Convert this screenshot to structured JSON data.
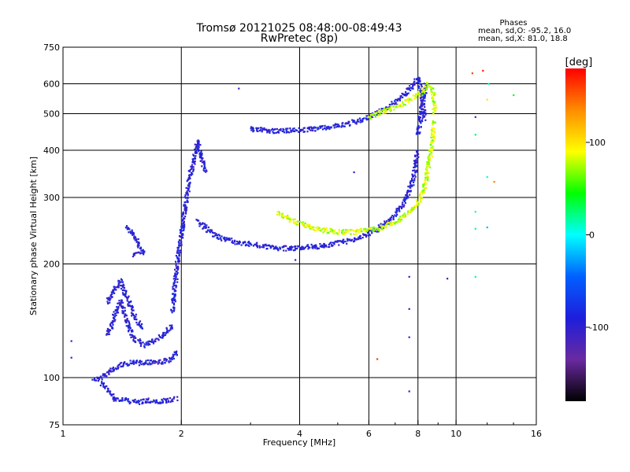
{
  "chart_data": {
    "type": "scatter",
    "title": "Tromsø 20121025 08:48:00-08:49:43",
    "subtitle": "RwPretec (8p)",
    "xlabel": "Frequency [MHz]",
    "ylabel": "Stationary phase Virtual Height [km]",
    "xscale": "log",
    "yscale": "log",
    "xlim": [
      1,
      16
    ],
    "ylim": [
      75,
      750
    ],
    "xticks": [
      1,
      2,
      4,
      6,
      8,
      10,
      16
    ],
    "xtick_labels": [
      "1",
      "2",
      "4",
      "6",
      "8",
      "10",
      "16"
    ],
    "yticks": [
      75,
      100,
      200,
      300,
      400,
      500,
      600,
      750
    ],
    "ytick_labels": [
      "75",
      "100",
      "200",
      "300",
      "400",
      "500",
      "600",
      "750"
    ],
    "vgrid": [
      2,
      4,
      6,
      8,
      10
    ],
    "hgrid": [
      100,
      200,
      300,
      400,
      500,
      600
    ],
    "phase_box": {
      "title": "Phases",
      "line1": "mean, sd,O: -95.2, 16.0",
      "line2": "mean, sd,X: 81.0, 18.8"
    },
    "colorbar": {
      "label": "[deg]",
      "range": [
        -180,
        180
      ],
      "ticks": [
        100,
        0,
        -100
      ],
      "tick_labels": [
        "100",
        "0",
        "-100"
      ],
      "colors": [
        "#ff0000",
        "#ff8c00",
        "#ffff00",
        "#00ff00",
        "#00ffff",
        "#0060ff",
        "#1e1edc",
        "#6a2aa0",
        "#000000"
      ]
    },
    "series": [
      {
        "phase": -95,
        "color": "#1e3cff",
        "traces": [
          {
            "kind": "sporadic-low",
            "x": [
              1.25,
              1.35,
              1.45,
              1.55,
              1.65,
              1.75,
              1.85,
              1.95
            ],
            "y": [
              97,
              88,
              87,
              86,
              87,
              86,
              87,
              88
            ]
          },
          {
            "kind": "lower-ramp",
            "x": [
              1.2,
              1.3,
              1.4,
              1.5,
              1.6,
              1.7,
              1.8,
              1.9,
              1.95
            ],
            "y": [
              98,
              103,
              108,
              110,
              109,
              110,
              110,
              112,
              118
            ]
          },
          {
            "kind": "lower-ramp-2",
            "x": [
              1.3,
              1.35,
              1.4,
              1.5,
              1.6,
              1.7,
              1.8,
              1.9
            ],
            "y": [
              130,
              145,
              160,
              128,
              122,
              125,
              130,
              138
            ]
          },
          {
            "kind": "E-trace",
            "x": [
              1.3,
              1.35,
              1.4,
              1.5,
              1.55,
              1.6
            ],
            "y": [
              158,
              170,
              180,
              150,
              140,
              135
            ]
          },
          {
            "kind": "blob-1.5",
            "x": [
              1.45,
              1.5,
              1.55,
              1.6,
              1.5
            ],
            "y": [
              250,
              240,
              228,
              215,
              210
            ]
          },
          {
            "kind": "F1-cusp",
            "x": [
              1.9,
              1.95,
              2.0,
              2.05,
              2.1,
              2.15,
              2.2,
              2.3
            ],
            "y": [
              150,
              200,
              240,
              290,
              340,
              380,
              420,
              350
            ]
          },
          {
            "kind": "F1-tail",
            "x": [
              2.2,
              2.3,
              2.4,
              2.6,
              2.8,
              3.0,
              3.2,
              3.4,
              3.7,
              4.0,
              4.5,
              5.0,
              5.5,
              6.0,
              6.5,
              7.0,
              7.5,
              7.8,
              8.0
            ],
            "y": [
              260,
              250,
              240,
              232,
              228,
              226,
              223,
              221,
              220,
              221,
              223,
              227,
              232,
              240,
              252,
              270,
              300,
              340,
              400
            ]
          },
          {
            "kind": "F2-O",
            "x": [
              3.0,
              3.5,
              4.0,
              4.5,
              5.0,
              5.5,
              6.0,
              6.5,
              7.0,
              7.5,
              7.8,
              8.0,
              8.2,
              8.3
            ],
            "y": [
              455,
              450,
              452,
              457,
              465,
              475,
              490,
              510,
              535,
              570,
              600,
              620,
              560,
              480
            ]
          },
          {
            "kind": "F-upper-vertical",
            "x": [
              8.0,
              8.1,
              8.2,
              8.3,
              8.35
            ],
            "y": [
              440,
              480,
              530,
              560,
              600
            ]
          }
        ]
      },
      {
        "phase": 81,
        "color": "#dcff00",
        "traces": [
          {
            "kind": "X-low",
            "x": [
              3.5,
              3.8,
              4.2,
              4.6,
              5.0,
              5.5,
              6.0,
              6.5,
              7.0,
              7.5,
              8.0,
              8.3,
              8.5,
              8.7,
              8.8
            ],
            "y": [
              272,
              262,
              252,
              246,
              243,
              243,
              246,
              250,
              258,
              270,
              290,
              320,
              360,
              420,
              480
            ]
          },
          {
            "kind": "X-high",
            "x": [
              6.0,
              6.5,
              7.0,
              7.5,
              8.0,
              8.3,
              8.5,
              8.7,
              8.8,
              8.85
            ],
            "y": [
              490,
              505,
              520,
              540,
              560,
              580,
              600,
              580,
              540,
              500
            ]
          }
        ]
      }
    ],
    "isolated_points": [
      {
        "x": 1.05,
        "y": 125,
        "phase": -100
      },
      {
        "x": 1.05,
        "y": 113,
        "phase": -100
      },
      {
        "x": 2.8,
        "y": 583,
        "phase": -100
      },
      {
        "x": 3.9,
        "y": 205,
        "phase": -100
      },
      {
        "x": 5.5,
        "y": 350,
        "phase": -100
      },
      {
        "x": 6.3,
        "y": 112,
        "phase": 160
      },
      {
        "x": 7.6,
        "y": 185,
        "phase": -100
      },
      {
        "x": 7.6,
        "y": 152,
        "phase": -100
      },
      {
        "x": 7.6,
        "y": 128,
        "phase": -100
      },
      {
        "x": 7.6,
        "y": 92,
        "phase": -100
      },
      {
        "x": 9.5,
        "y": 183,
        "phase": -100
      },
      {
        "x": 11.2,
        "y": 490,
        "phase": -100
      },
      {
        "x": 11.2,
        "y": 440,
        "phase": 30
      },
      {
        "x": 11.2,
        "y": 275,
        "phase": 10
      },
      {
        "x": 11.2,
        "y": 248,
        "phase": 20
      },
      {
        "x": 11.2,
        "y": 185,
        "phase": 20
      },
      {
        "x": 11.7,
        "y": 650,
        "phase": 170
      },
      {
        "x": 12.0,
        "y": 545,
        "phase": 100
      },
      {
        "x": 12.0,
        "y": 340,
        "phase": 10
      },
      {
        "x": 12.0,
        "y": 250,
        "phase": -20
      },
      {
        "x": 12.5,
        "y": 330,
        "phase": 140
      },
      {
        "x": 14.0,
        "y": 560,
        "phase": 40
      },
      {
        "x": 11.0,
        "y": 640,
        "phase": 160
      },
      {
        "x": 12.1,
        "y": 600,
        "phase": 20
      }
    ]
  }
}
